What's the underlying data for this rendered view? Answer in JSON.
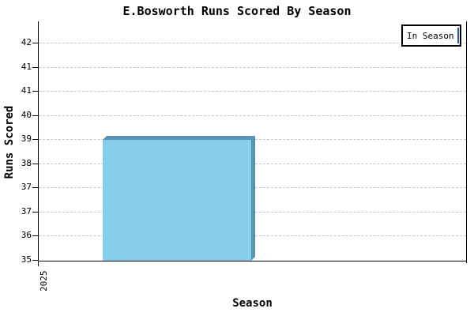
{
  "chart_data": {
    "type": "bar",
    "style": "3d-bar",
    "title": "E.Bosworth Runs Scored By Season",
    "xlabel": "Season",
    "ylabel": "Runs Scored",
    "categories": [
      "2025"
    ],
    "series": [
      {
        "name": "In Season",
        "values": [
          39
        ]
      }
    ],
    "ylim": [
      35,
      42
    ],
    "y_tick_labels_top_to_bottom": [
      "42",
      "41",
      "41",
      "40",
      "39",
      "38",
      "37",
      "37",
      "36",
      "35"
    ],
    "grid": "horizontal-dashed",
    "legend": {
      "position": "top-right",
      "entries": [
        {
          "label": "In Season",
          "swatch_fill": "#87CEEB",
          "swatch_border": "#2A5DA8"
        }
      ]
    },
    "colors": {
      "bar_fill": "#87CEEB",
      "bar_shade": "#5894B0",
      "gridline": "#C6C6C6",
      "axis": "#000000",
      "text": "#000000",
      "background": "#FFFFFF"
    }
  }
}
